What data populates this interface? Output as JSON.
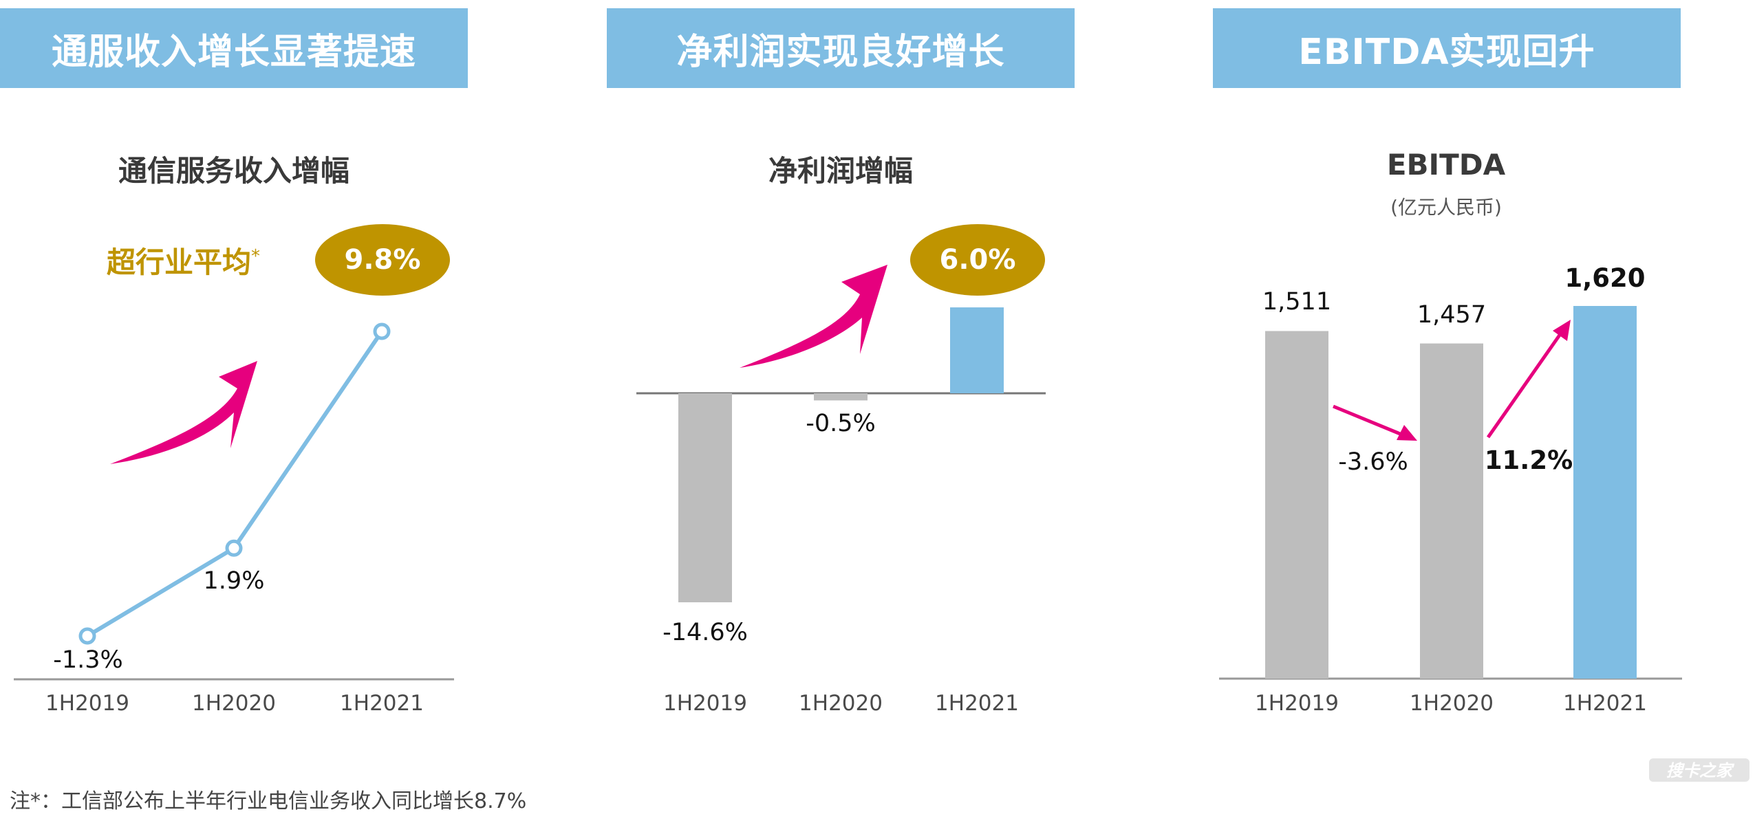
{
  "colors": {
    "banner": "#7fbde3",
    "line": "#7fbde3",
    "bar_gray": "#bdbdbd",
    "bar_blue": "#7fbde3",
    "arrow": "#e6007e",
    "badge": "#bf9400"
  },
  "panels": [
    {
      "banner": "通服收入增长显著提速",
      "title": "通信服务收入增幅",
      "above_label": "超行业平均",
      "above_mark": "*",
      "badge": "9.8%"
    },
    {
      "banner": "净利润实现良好增长",
      "title": "净利润增幅",
      "badge": "6.0%"
    },
    {
      "banner": "EBITDA实现回升",
      "title": "EBITDA",
      "unit": "(亿元人民币)",
      "change_1": "-3.6%",
      "change_2": "11.2%"
    }
  ],
  "chart_data": [
    {
      "type": "line",
      "title": "通信服务收入增幅",
      "categories": [
        "1H2019",
        "1H2020",
        "1H2021"
      ],
      "values": [
        -1.3,
        1.9,
        9.8
      ],
      "labels": [
        "-1.3%",
        "1.9%",
        "9.8%"
      ]
    },
    {
      "type": "bar",
      "title": "净利润增幅",
      "categories": [
        "1H2019",
        "1H2020",
        "1H2021"
      ],
      "values": [
        -14.6,
        -0.5,
        6.0
      ],
      "labels": [
        "-14.6%",
        "-0.5%",
        "6.0%"
      ]
    },
    {
      "type": "bar",
      "title": "EBITDA",
      "categories": [
        "1H2019",
        "1H2020",
        "1H2021"
      ],
      "values": [
        1511,
        1457,
        1620
      ],
      "labels": [
        "1,511",
        "1,457",
        "1,620"
      ]
    }
  ],
  "note": "注*：工信部公布上半年行业电信业务收入同比增长8.7%",
  "watermark": "搜卡之家"
}
